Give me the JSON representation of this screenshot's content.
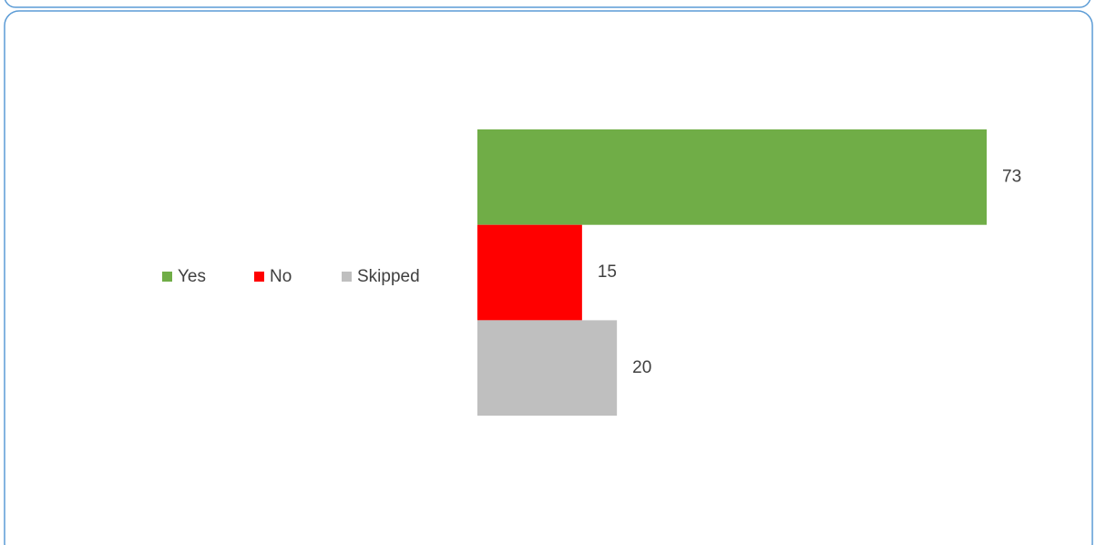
{
  "chart_data": {
    "type": "bar",
    "orientation": "horizontal",
    "categories": [
      null
    ],
    "series": [
      {
        "name": "Yes",
        "color": "#70ad47",
        "values": [
          73
        ]
      },
      {
        "name": "No",
        "color": "#ff0000",
        "values": [
          15
        ]
      },
      {
        "name": "Skipped",
        "color": "#bfbfbf",
        "values": [
          20
        ]
      }
    ],
    "legend": "left"
  }
}
